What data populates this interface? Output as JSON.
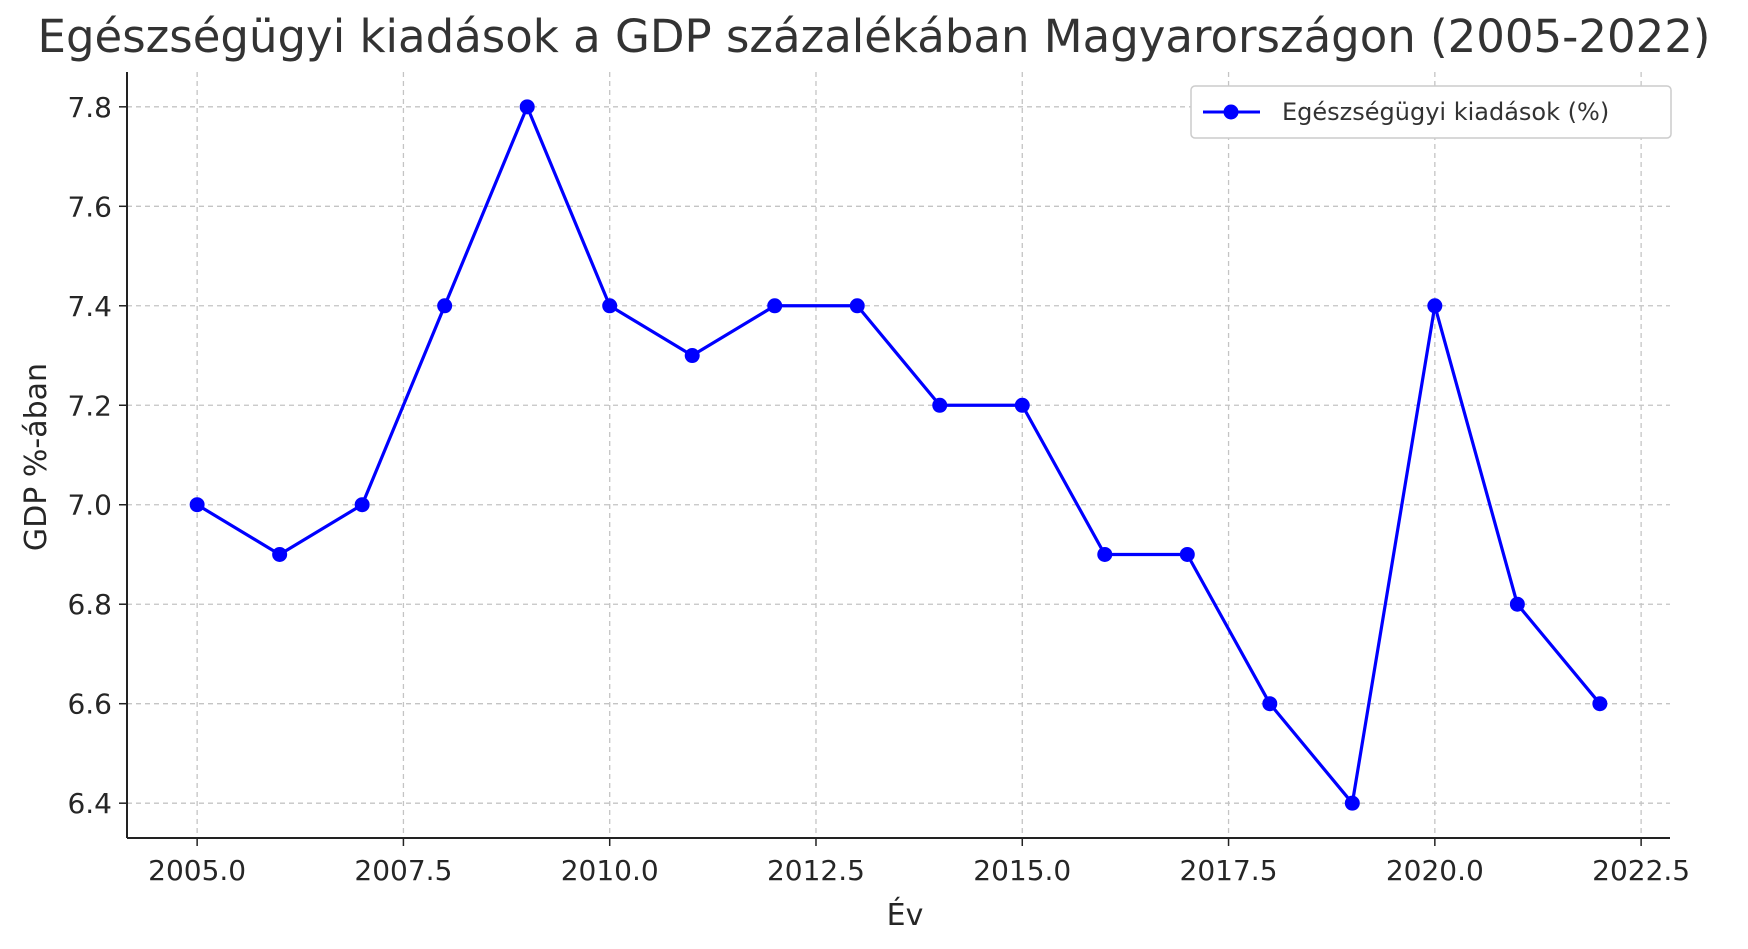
{
  "chart_data": {
    "type": "line",
    "title": "Egészségügyi kiadások a GDP százalékában Magyarországon (2005-2022)",
    "xlabel": "Év",
    "ylabel": "GDP %-ában",
    "x": [
      2005,
      2006,
      2007,
      2008,
      2009,
      2010,
      2011,
      2012,
      2013,
      2014,
      2015,
      2016,
      2017,
      2018,
      2019,
      2020,
      2021,
      2022
    ],
    "series": [
      {
        "name": "Egészségügyi kiadások (%)",
        "color": "#0000ff",
        "marker": "circle",
        "values": [
          7.0,
          6.9,
          7.0,
          7.4,
          7.8,
          7.4,
          7.3,
          7.4,
          7.4,
          7.2,
          7.2,
          6.9,
          6.9,
          6.6,
          6.4,
          7.4,
          6.8,
          6.6
        ]
      }
    ],
    "xlim": [
      2004.15,
      2022.85
    ],
    "ylim": [
      6.33,
      7.87
    ],
    "xticks": [
      2005.0,
      2007.5,
      2010.0,
      2012.5,
      2015.0,
      2017.5,
      2020.0,
      2022.5
    ],
    "xtick_labels": [
      "2005.0",
      "2007.5",
      "2010.0",
      "2012.5",
      "2015.0",
      "2017.5",
      "2020.0",
      "2022.5"
    ],
    "yticks": [
      6.4,
      6.6,
      6.8,
      7.0,
      7.2,
      7.4,
      7.6,
      7.8
    ],
    "ytick_labels": [
      "6.4",
      "6.6",
      "6.8",
      "7.0",
      "7.2",
      "7.4",
      "7.6",
      "7.8"
    ],
    "grid": true,
    "grid_style": "dashed",
    "legend_position": "top-right"
  }
}
